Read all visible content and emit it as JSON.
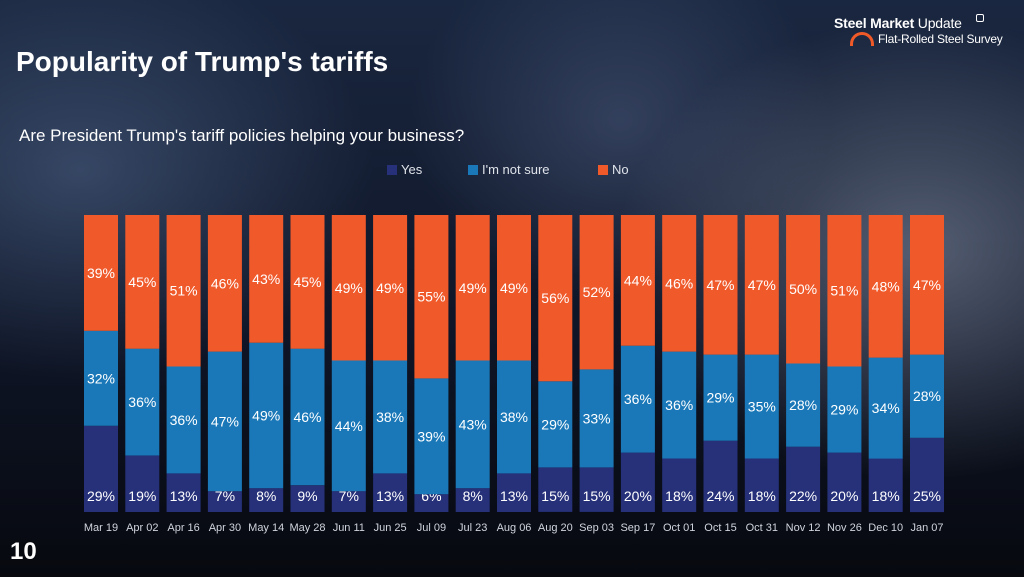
{
  "slide": {
    "title": "Popularity of Trump's tariffs",
    "subtitle": "Are President Trump's tariff policies helping your business?",
    "page_number": "10"
  },
  "logo": {
    "brand_bold": "Steel Market",
    "brand_thin": "Update",
    "tagline": "Flat-Rolled Steel Survey",
    "accent": "#f05a28"
  },
  "chart_data": {
    "type": "bar",
    "stacked": true,
    "normalized_percent": true,
    "categories": [
      "Mar 19",
      "Apr 02",
      "Apr 16",
      "Apr 30",
      "May 14",
      "May 28",
      "Jun 11",
      "Jun 25",
      "Jul 09",
      "Jul 23",
      "Aug 06",
      "Aug 20",
      "Sep 03",
      "Sep 17",
      "Oct 01",
      "Oct 15",
      "Oct 31",
      "Nov 12",
      "Nov 26",
      "Dec 10",
      "Jan 07"
    ],
    "series": [
      {
        "name": "Yes",
        "color": "#26317a",
        "values": [
          29,
          19,
          13,
          7,
          8,
          9,
          7,
          13,
          6,
          8,
          13,
          15,
          15,
          20,
          18,
          24,
          18,
          22,
          20,
          18,
          25
        ],
        "labels": [
          "29%",
          "19%",
          "13%",
          "7%",
          "8%",
          "9%",
          "7%",
          "13%",
          "6%",
          "8%",
          "13%",
          "15%",
          "15%",
          "20%",
          "18%",
          "24%",
          "18%",
          "22%",
          "20%",
          "18%",
          "25%"
        ]
      },
      {
        "name": "I'm not sure",
        "color": "#1a78b8",
        "values": [
          32,
          36,
          36,
          47,
          49,
          46,
          44,
          38,
          39,
          43,
          38,
          29,
          33,
          36,
          36,
          29,
          35,
          28,
          29,
          34,
          28
        ],
        "labels": [
          "32%",
          "36%",
          "36%",
          "47%",
          "49%",
          "46%",
          "44%",
          "38%",
          "39%",
          "43%",
          "38%",
          "29%",
          "33%",
          "36%",
          "36%",
          "29%",
          "35%",
          "28%",
          "29%",
          "34%",
          "28%"
        ]
      },
      {
        "name": "No",
        "color": "#f05a2b",
        "values": [
          39,
          45,
          51,
          46,
          43,
          45,
          49,
          49,
          55,
          49,
          49,
          56,
          52,
          44,
          46,
          47,
          47,
          50,
          51,
          48,
          47
        ],
        "labels": [
          "39%",
          "45%",
          "51%",
          "46%",
          "43%",
          "45%",
          "49%",
          "49%",
          "55%",
          "49%",
          "49%",
          "56%",
          "52%",
          "44%",
          "46%",
          "47%",
          "47%",
          "50%",
          "51%",
          "48%",
          "47%"
        ]
      }
    ],
    "ylim": [
      0,
      100
    ],
    "legend_position": "top",
    "grid": false
  }
}
